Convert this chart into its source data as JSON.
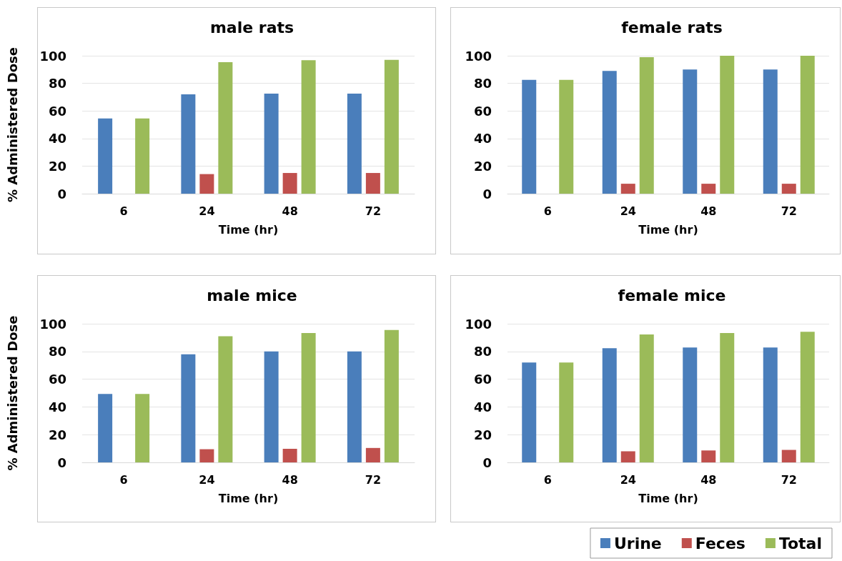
{
  "chart_data": [
    {
      "type": "bar",
      "title": "male rats",
      "xlabel": "Time (hr)",
      "ylabel": "% Administered Dose",
      "categories": [
        "6",
        "24",
        "48",
        "72"
      ],
      "ylim": [
        0,
        100
      ],
      "yticks": [
        0,
        20,
        40,
        60,
        80,
        100
      ],
      "grid": "y",
      "legend": false,
      "series": [
        {
          "color": "#4a7ebb",
          "values": [
            54.5,
            72,
            72.5,
            72.5
          ]
        },
        {
          "color": "#c0504d",
          "values": [
            null,
            14.2,
            15,
            15
          ]
        },
        {
          "color": "#9bbb59",
          "values": [
            54.5,
            95.3,
            96.7,
            97
          ]
        }
      ]
    },
    {
      "type": "bar",
      "title": "female rats",
      "xlabel": "Time (hr)",
      "categories": [
        "6",
        "24",
        "48",
        "72"
      ],
      "ylim": [
        0,
        100
      ],
      "yticks": [
        0,
        20,
        40,
        60,
        80,
        100
      ],
      "grid": "y",
      "legend": false,
      "series": [
        {
          "color": "#4a7ebb",
          "values": [
            82.5,
            89,
            90,
            90
          ]
        },
        {
          "color": "#c0504d",
          "values": [
            null,
            7.2,
            7.2,
            7.2
          ]
        },
        {
          "color": "#9bbb59",
          "values": [
            82.5,
            99,
            100,
            100
          ]
        }
      ]
    },
    {
      "type": "bar",
      "title": "male mice",
      "xlabel": "Time (hr)",
      "ylabel": "% Administered Dose",
      "categories": [
        "6",
        "24",
        "48",
        "72"
      ],
      "ylim": [
        0,
        100
      ],
      "yticks": [
        0,
        20,
        40,
        60,
        80,
        100
      ],
      "grid": "y",
      "legend": false,
      "series": [
        {
          "color": "#4a7ebb",
          "values": [
            49.4,
            78,
            80,
            80
          ]
        },
        {
          "color": "#c0504d",
          "values": [
            null,
            9.5,
            9.8,
            10.4
          ]
        },
        {
          "color": "#9bbb59",
          "values": [
            49.4,
            91,
            93.3,
            95.5
          ]
        }
      ]
    },
    {
      "type": "bar",
      "title": "female mice",
      "xlabel": "Time (hr)",
      "categories": [
        "6",
        "24",
        "48",
        "72"
      ],
      "ylim": [
        0,
        100
      ],
      "yticks": [
        0,
        20,
        40,
        60,
        80,
        100
      ],
      "grid": "y",
      "legend": "bottom right",
      "series": [
        {
          "name": "Urine",
          "color": "#4a7ebb",
          "values": [
            72,
            82.3,
            82.8,
            82.8
          ]
        },
        {
          "name": "Feces",
          "color": "#c0504d",
          "values": [
            null,
            8,
            8.6,
            9
          ]
        },
        {
          "name": "Total",
          "color": "#9bbb59",
          "values": [
            72,
            92.3,
            93.3,
            94.2
          ]
        }
      ]
    }
  ]
}
